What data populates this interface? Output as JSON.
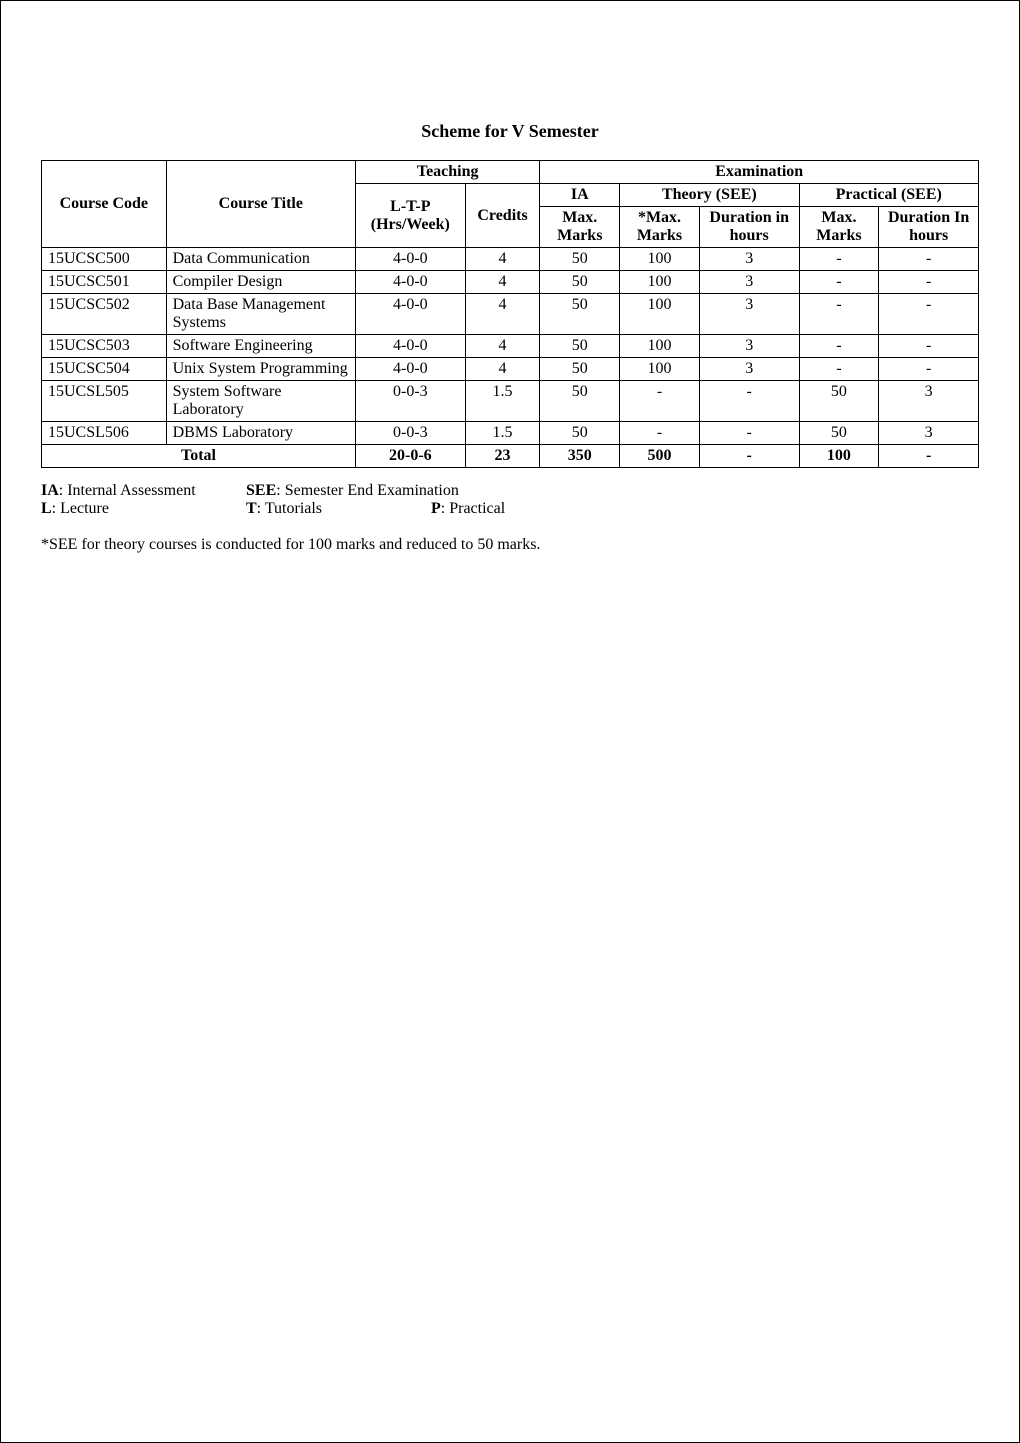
{
  "title": "Scheme for V Semester",
  "headers": {
    "course_code": "Course Code",
    "course_title": "Course Title",
    "teaching": "Teaching",
    "ltp": "L-T-P (Hrs/Week)",
    "credits": "Credits",
    "examination": "Examination",
    "ia": "IA",
    "ia_max": "Max. Marks",
    "theory_see": "Theory (SEE)",
    "see_max": "*Max. Marks",
    "see_dur": "Duration in hours",
    "practical_see": "Practical (SEE)",
    "p_max": "Max. Marks",
    "p_dur": "Duration In hours"
  },
  "rows": [
    {
      "code": "15UCSC500",
      "title": "Data Communication",
      "ltp": "4-0-0",
      "cred": "4",
      "ia": "50",
      "smax": "100",
      "sdur": "3",
      "pmax": "-",
      "pdur": "-"
    },
    {
      "code": "15UCSC501",
      "title": "Compiler Design",
      "ltp": "4-0-0",
      "cred": "4",
      "ia": "50",
      "smax": "100",
      "sdur": "3",
      "pmax": "-",
      "pdur": "-"
    },
    {
      "code": "15UCSC502",
      "title": "Data Base Management Systems",
      "ltp": "4-0-0",
      "cred": "4",
      "ia": "50",
      "smax": "100",
      "sdur": "3",
      "pmax": "-",
      "pdur": "-"
    },
    {
      "code": "15UCSC503",
      "title": "Software Engineering",
      "ltp": "4-0-0",
      "cred": "4",
      "ia": "50",
      "smax": "100",
      "sdur": "3",
      "pmax": "-",
      "pdur": "-"
    },
    {
      "code": "15UCSC504",
      "title": "Unix System Programming",
      "ltp": "4-0-0",
      "cred": "4",
      "ia": "50",
      "smax": "100",
      "sdur": "3",
      "pmax": "-",
      "pdur": "-"
    },
    {
      "code": "15UCSL505",
      "title": "System Software Laboratory",
      "ltp": "0-0-3",
      "cred": "1.5",
      "ia": "50",
      "smax": "-",
      "sdur": "-",
      "pmax": "50",
      "pdur": "3"
    },
    {
      "code": "15UCSL506",
      "title": "DBMS Laboratory",
      "ltp": "0-0-3",
      "cred": "1.5",
      "ia": "50",
      "smax": "-",
      "sdur": "-",
      "pmax": "50",
      "pdur": "3"
    }
  ],
  "total": {
    "label": "Total",
    "ltp": "20-0-6",
    "cred": "23",
    "ia": "350",
    "smax": "500",
    "sdur": "-",
    "pmax": "100",
    "pdur": "-"
  },
  "legend": {
    "ia_b": "IA",
    "ia_t": ": Internal Assessment",
    "see_b": "SEE",
    "see_t": ": Semester End Examination",
    "l_b": "L",
    "l_t": ": Lecture",
    "t_b": "T",
    "t_t": ": Tutorials",
    "p_b": "P",
    "p_t": ": Practical"
  },
  "footnote": "*SEE for theory courses is conducted for 100 marks and reduced to 50 marks."
}
